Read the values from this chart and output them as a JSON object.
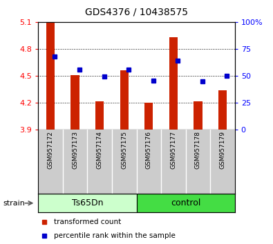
{
  "title": "GDS4376 / 10438575",
  "samples": [
    "GSM957172",
    "GSM957173",
    "GSM957174",
    "GSM957175",
    "GSM957176",
    "GSM957177",
    "GSM957178",
    "GSM957179"
  ],
  "bar_values": [
    5.095,
    4.505,
    4.215,
    4.56,
    4.195,
    4.93,
    4.215,
    4.34
  ],
  "bar_bottom": 3.9,
  "percentile_values": [
    4.71,
    4.565,
    4.49,
    4.565,
    4.445,
    4.665,
    4.44,
    4.5
  ],
  "ylim": [
    3.9,
    5.1
  ],
  "yticks_left": [
    3.9,
    4.2,
    4.5,
    4.8,
    5.1
  ],
  "yticks_right": [
    0,
    25,
    50,
    75,
    100
  ],
  "bar_color": "#cc2200",
  "point_color": "#0000cc",
  "group1_label": "Ts65Dn",
  "group2_label": "control",
  "group1_color": "#ccffcc",
  "group2_color": "#44dd44",
  "strain_label": "strain",
  "legend_bar_label": "transformed count",
  "legend_point_label": "percentile rank within the sample",
  "tick_area_bg": "#cccccc",
  "bar_width": 0.35
}
